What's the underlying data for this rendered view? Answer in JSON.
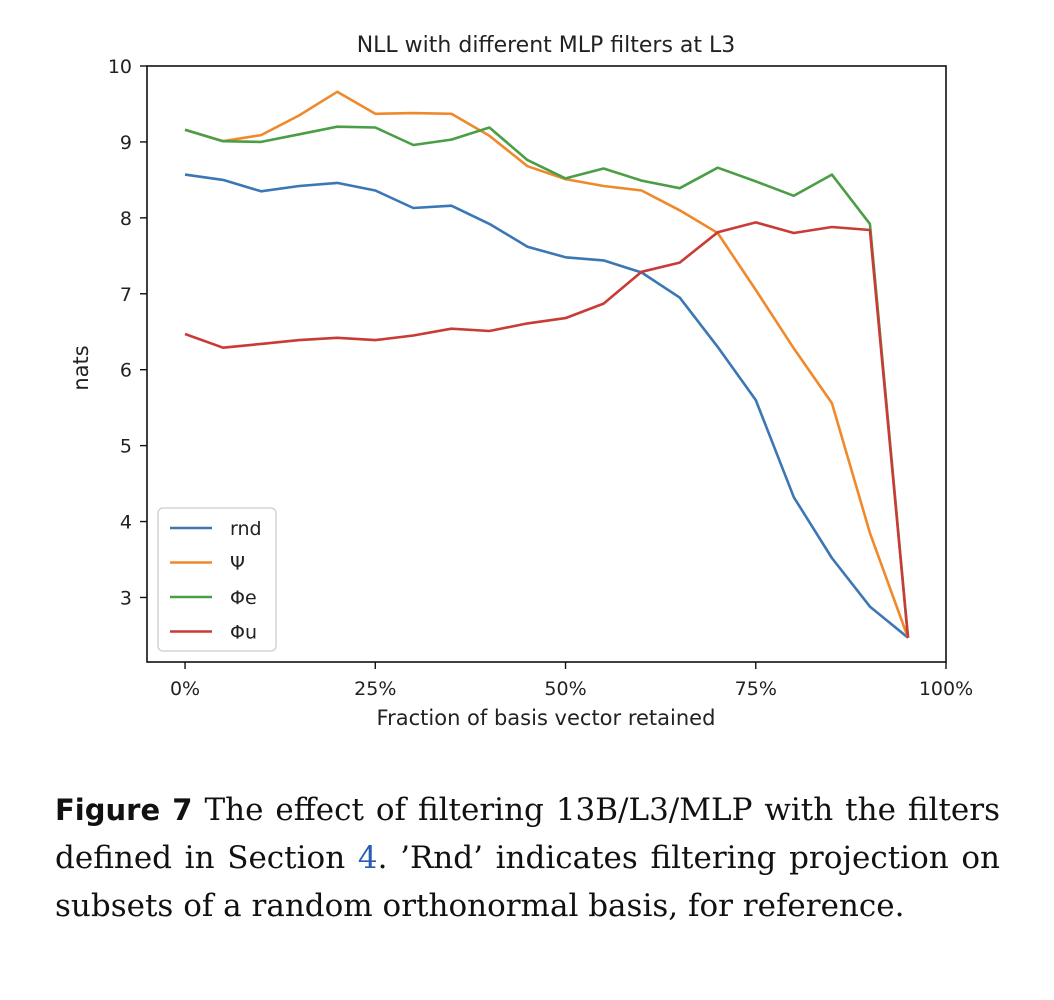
{
  "chart_data": {
    "type": "line",
    "title": "NLL with different MLP filters at L3",
    "xlabel": "Fraction of basis vector retained",
    "ylabel": "nats",
    "xlim": [
      -0.05,
      1.0
    ],
    "ylim": [
      2.15,
      10
    ],
    "x": [
      0,
      0.05,
      0.1,
      0.15,
      0.2,
      0.25,
      0.3,
      0.35,
      0.4,
      0.45,
      0.5,
      0.55,
      0.6,
      0.65,
      0.7,
      0.75,
      0.8,
      0.85,
      0.9,
      0.95
    ],
    "xticks": [
      0,
      0.25,
      0.5,
      0.75,
      1.0
    ],
    "xtick_labels": [
      "0%",
      "25%",
      "50%",
      "75%",
      "100%"
    ],
    "yticks": [
      3,
      4,
      5,
      6,
      7,
      8,
      9,
      10
    ],
    "ytick_labels": [
      "3",
      "4",
      "5",
      "6",
      "7",
      "8",
      "9",
      "10"
    ],
    "grid": false,
    "legend_position": "lower-left",
    "series": [
      {
        "name": "rnd",
        "color": "#3a77b4",
        "values": [
          8.57,
          8.5,
          8.35,
          8.42,
          8.46,
          8.36,
          8.13,
          8.16,
          7.92,
          7.62,
          7.48,
          7.44,
          7.28,
          6.95,
          6.3,
          5.6,
          4.32,
          3.52,
          2.88,
          2.47
        ]
      },
      {
        "name": "Ψ",
        "color": "#f0892b",
        "values": [
          9.16,
          9.01,
          9.09,
          9.35,
          9.66,
          9.37,
          9.38,
          9.37,
          9.08,
          8.68,
          8.51,
          8.42,
          8.36,
          8.1,
          7.8,
          7.05,
          6.28,
          5.56,
          3.85,
          2.47
        ]
      },
      {
        "name": "Φe",
        "color": "#4a9e45",
        "values": [
          9.16,
          9.01,
          9.0,
          9.1,
          9.2,
          9.19,
          8.96,
          9.03,
          9.19,
          8.76,
          8.52,
          8.65,
          8.49,
          8.39,
          8.66,
          8.48,
          8.29,
          8.57,
          7.92,
          2.47
        ]
      },
      {
        "name": "Φu",
        "color": "#c93b37",
        "values": [
          6.47,
          6.29,
          6.34,
          6.39,
          6.42,
          6.39,
          6.45,
          6.54,
          6.51,
          6.61,
          6.68,
          6.87,
          7.29,
          7.41,
          7.81,
          7.94,
          7.8,
          7.88,
          7.84,
          2.47
        ]
      }
    ]
  },
  "caption": {
    "label": "Figure 7",
    "text_before": "The effect of filtering 13B/L3/MLP with the filters defined in Section",
    "ref": "4",
    "text_after": ". ’Rnd’ indicates filtering projection on subsets of a random orthonormal basis, for reference."
  }
}
